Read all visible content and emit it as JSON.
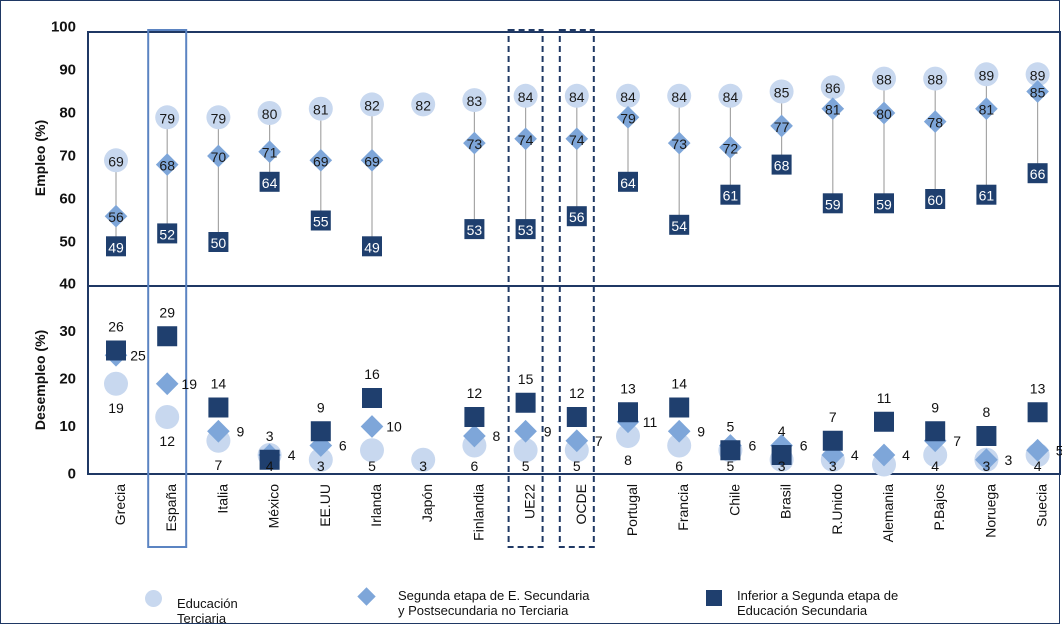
{
  "chart_data": {
    "type": "scatter",
    "categories": [
      "Grecia",
      "España",
      "Italia",
      "México",
      "EE.UU",
      "Irlanda",
      "Japón",
      "Finlandia",
      "UE22",
      "OCDE",
      "Portugal",
      "Francia",
      "Chile",
      "Brasil",
      "R.Unido",
      "Alemania",
      "P.Bajos",
      "Noruega",
      "Suecia"
    ],
    "highlight_box": [
      "España"
    ],
    "dashed_box": [
      "UE22",
      "OCDE"
    ],
    "panels": [
      {
        "ylabel": "Empleo (%)",
        "ylim": [
          40,
          100
        ],
        "yticks": [
          "40",
          "50",
          "60",
          "70",
          "80",
          "90",
          "100"
        ],
        "series": [
          {
            "name": "Educación Terciaria",
            "values": [
              69,
              79,
              79,
              80,
              81,
              82,
              82,
              83,
              84,
              84,
              84,
              84,
              84,
              85,
              86,
              88,
              88,
              89,
              89
            ]
          },
          {
            "name": "Segunda etapa de E. Secundaria y Postsecundaria no Terciaria",
            "values": [
              56,
              68,
              70,
              71,
              69,
              69,
              null,
              73,
              74,
              74,
              79,
              73,
              72,
              77,
              81,
              80,
              78,
              81,
              85
            ]
          },
          {
            "name": "Inferior a Segunda etapa de Educación Secundaria",
            "values": [
              49,
              52,
              50,
              64,
              55,
              49,
              null,
              53,
              53,
              56,
              64,
              54,
              61,
              68,
              59,
              59,
              60,
              61,
              66
            ]
          }
        ]
      },
      {
        "ylabel": "Desempleo (%)",
        "ylim": [
          0,
          40
        ],
        "yticks": [
          "0",
          "10",
          "20",
          "30",
          "40"
        ],
        "series": [
          {
            "name": "Educación Terciaria",
            "values": [
              19,
              12,
              7,
              4,
              3,
              5,
              3,
              6,
              5,
              5,
              8,
              6,
              5,
              3,
              3,
              2,
              4,
              3,
              4
            ],
            "labels": [
              "19",
              "12",
              "7",
              "4",
              "3",
              "5",
              "3",
              "6",
              "5",
              "5",
              "8",
              "6",
              "5",
              "3",
              "3",
              "",
              "4",
              "3",
              "4"
            ]
          },
          {
            "name": "Segunda etapa de E. Secundaria y Postsecundaria no Terciaria",
            "values": [
              25,
              19,
              9,
              4,
              6,
              10,
              null,
              8,
              9,
              7,
              11,
              9,
              6,
              6,
              4,
              4,
              7,
              3,
              5
            ],
            "labels": [
              "25",
              "19",
              "9",
              "4",
              "6",
              "10",
              "",
              "8",
              "9",
              "7",
              "11",
              "9",
              "6",
              "6",
              "4",
              "4",
              "7",
              "3",
              "5"
            ]
          },
          {
            "name": "Inferior a Segunda etapa de Educación Secundaria",
            "values": [
              26,
              29,
              14,
              3,
              9,
              16,
              null,
              12,
              15,
              12,
              13,
              14,
              5,
              4,
              7,
              11,
              9,
              8,
              13
            ],
            "labels": [
              "26",
              "29",
              "14",
              "3",
              "9",
              "16",
              "",
              "12",
              "15",
              "12",
              "13",
              "14",
              "5",
              "4",
              "7",
              "11",
              "9",
              "8",
              "13"
            ]
          }
        ]
      }
    ]
  },
  "legend": {
    "terciaria": [
      "Educación",
      "Terciaria"
    ],
    "secundaria": [
      "Segunda etapa de E. Secundaria",
      "y Postsecundaria no Terciaria"
    ],
    "inferior": [
      "Inferior a Segunda etapa de",
      "Educación Secundaria"
    ]
  },
  "colors": {
    "terciaria": "#c8d8ef",
    "secundaria": "#7ea6d9",
    "inferior": "#1f3f6e",
    "frame": "#1f3864",
    "box": "#5b84c2",
    "stem": "#a6a6a6"
  }
}
